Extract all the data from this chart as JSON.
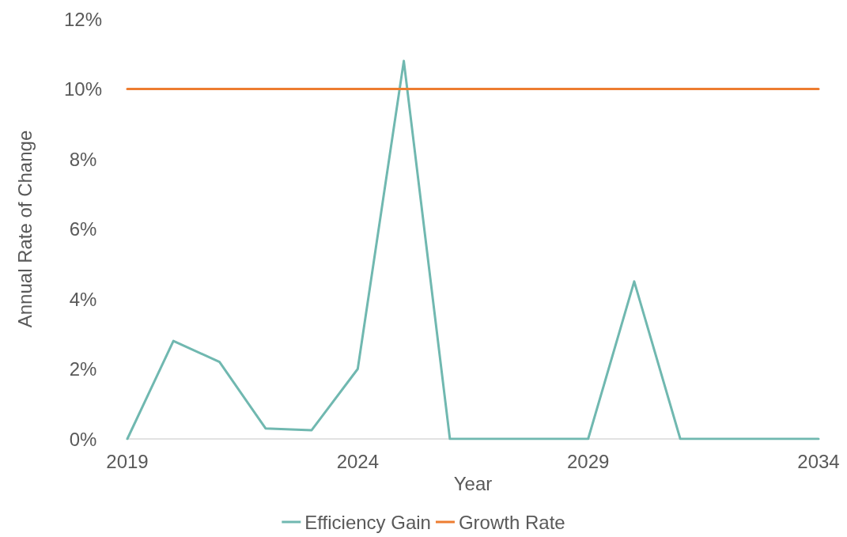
{
  "chart_data": {
    "type": "line",
    "xlabel": "Year",
    "ylabel": "Annual Rate of Change",
    "x": [
      2019,
      2020,
      2021,
      2022,
      2023,
      2024,
      2025,
      2026,
      2027,
      2028,
      2029,
      2030,
      2031,
      2032,
      2033,
      2034
    ],
    "series": [
      {
        "name": "Efficiency Gain",
        "color": "#70b8b0",
        "values": [
          0,
          2.8,
          2.2,
          0.3,
          0.25,
          2.0,
          10.8,
          0,
          0,
          0,
          0,
          4.5,
          0,
          0,
          0,
          0
        ]
      },
      {
        "name": "Growth Rate",
        "color": "#ed7d31",
        "values": [
          10,
          10,
          10,
          10,
          10,
          10,
          10,
          10,
          10,
          10,
          10,
          10,
          10,
          10,
          10,
          10
        ]
      }
    ],
    "xlim": [
      2019,
      2034
    ],
    "xticks": [
      2019,
      2024,
      2029,
      2034
    ],
    "ylim": [
      0,
      12
    ],
    "yticks": [
      {
        "value": 0,
        "label": "0%"
      },
      {
        "value": 2,
        "label": "2%"
      },
      {
        "value": 4,
        "label": "4%"
      },
      {
        "value": 6,
        "label": "6%"
      },
      {
        "value": 8,
        "label": "8%"
      },
      {
        "value": 10,
        "label": "10%"
      },
      {
        "value": 12,
        "label": "12%"
      }
    ],
    "grid": false,
    "legend": "bottom",
    "marker": "none",
    "line_style": "solid"
  }
}
